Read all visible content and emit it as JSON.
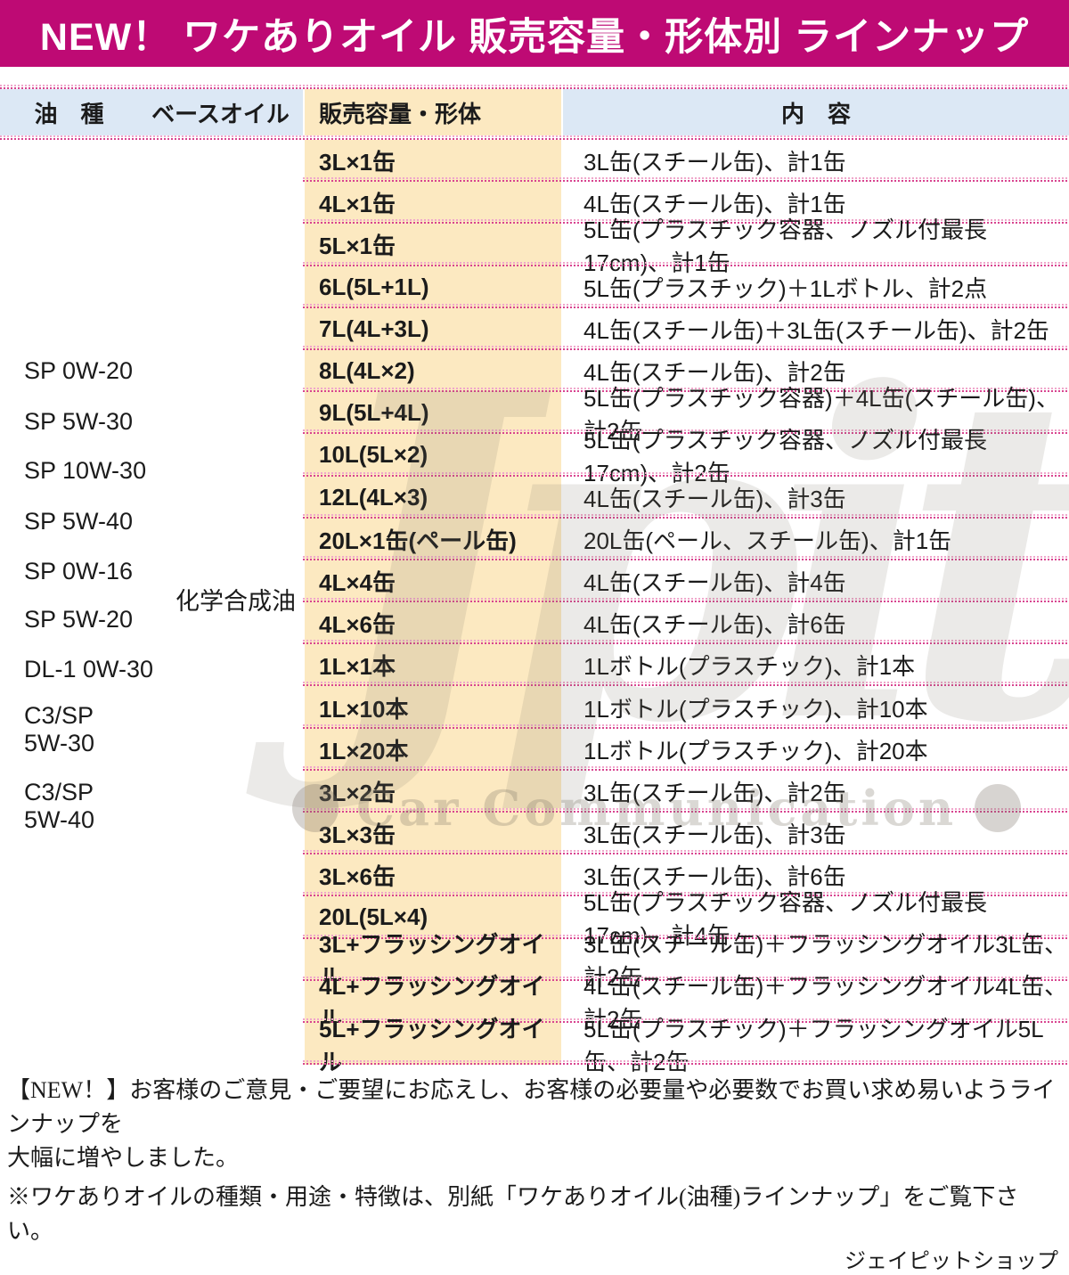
{
  "title": "NEW！ ワケありオイル 販売容量・形体別 ラインナップ",
  "columns": {
    "oil_type": "油　種",
    "base_oil": "ベースオイル",
    "volume_form": "販売容量・形体",
    "contents": "内　容"
  },
  "oil_types": [
    "SP 0W-20",
    "SP 5W-30",
    "SP 10W-30",
    "SP 5W-40",
    "SP 0W-16",
    "SP 5W-20",
    "DL-1 0W-30",
    "C3/SP\n5W-30",
    "C3/SP\n5W-40"
  ],
  "base_oil_value": "化学合成油",
  "rows": [
    {
      "volume": "3L×1缶",
      "content": "3L缶(スチール缶)、計1缶"
    },
    {
      "volume": "4L×1缶",
      "content": "4L缶(スチール缶)、計1缶"
    },
    {
      "volume": "5L×1缶",
      "content": "5L缶(プラスチック容器、ノズル付最長17cm)、計1缶"
    },
    {
      "volume": "6L(5L+1L)",
      "content": "5L缶(プラスチック)＋1Lボトル、計2点"
    },
    {
      "volume": "7L(4L+3L)",
      "content": "4L缶(スチール缶)＋3L缶(スチール缶)、計2缶"
    },
    {
      "volume": "8L(4L×2)",
      "content": "4L缶(スチール缶)、計2缶"
    },
    {
      "volume": "9L(5L+4L)",
      "content": "5L缶(プラスチック容器)＋4L缶(スチール缶)、計2缶"
    },
    {
      "volume": "10L(5L×2)",
      "content": "5L缶(プラスチック容器、ノズル付最長17cm)、計2缶"
    },
    {
      "volume": "12L(4L×3)",
      "content": "4L缶(スチール缶)、計3缶"
    },
    {
      "volume": "20L×1缶(ペール缶)",
      "content": "20L缶(ペール、スチール缶)、計1缶"
    },
    {
      "volume": "4L×4缶",
      "content": "4L缶(スチール缶)、計4缶"
    },
    {
      "volume": "4L×6缶",
      "content": "4L缶(スチール缶)、計6缶"
    },
    {
      "volume": "1L×1本",
      "content": "1Lボトル(プラスチック)、計1本"
    },
    {
      "volume": "1L×10本",
      "content": "1Lボトル(プラスチック)、計10本"
    },
    {
      "volume": "1L×20本",
      "content": "1Lボトル(プラスチック)、計20本"
    },
    {
      "volume": "3L×2缶",
      "content": "3L缶(スチール缶)、計2缶"
    },
    {
      "volume": "3L×3缶",
      "content": "3L缶(スチール缶)、計3缶"
    },
    {
      "volume": "3L×6缶",
      "content": "3L缶(スチール缶)、計6缶"
    },
    {
      "volume": "20L(5L×4)",
      "content": "5L缶(プラスチック容器、ノズル付最長17cm)、計4缶"
    },
    {
      "volume": "3L+フラッシングオイル",
      "content": "3L缶(スチール缶)＋フラッシングオイル3L缶、計2缶"
    },
    {
      "volume": "4L+フラッシングオイル",
      "content": "4L缶(スチール缶)＋フラッシングオイル4L缶、計2缶"
    },
    {
      "volume": "5L+フラッシングオイル",
      "content": "5L缶(プラスチック)＋フラッシングオイル5L缶、計2缶"
    }
  ],
  "watermark": {
    "logo": "Jpit",
    "subtitle": "Car Communication"
  },
  "footer": {
    "line1": "【NEW！】お客様のご意見・ご要望にお応えし、お客様の必要量や必要数でお買い求め易いようラインナップを",
    "line2": "大幅に増やしました。",
    "line3": "※ワケありオイルの種類・用途・特徴は、別紙「ワケありオイル(油種)ラインナップ」をご覧下さい。",
    "shop": "ジェイピットショップ"
  },
  "colors": {
    "header_bar": "#be0a74",
    "header_cell_blue": "#dce8f5",
    "volume_column_cream": "#fce9c1",
    "separator_pink": "#d8438f",
    "text": "#1b1b1b",
    "watermark_gray": "#b9b2a6"
  }
}
